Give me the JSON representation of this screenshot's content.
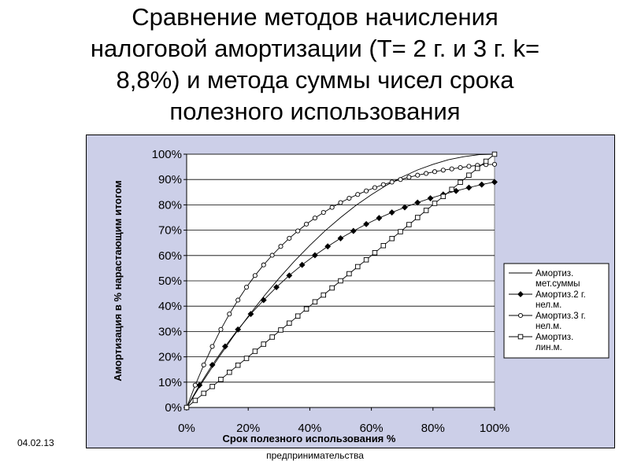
{
  "slide": {
    "title": "Сравнение методов начисления налоговой амортизации (T= 2 г. и 3 г. k= 8,8%) и метода суммы чисел срока полезного использования",
    "date": "04.02.13",
    "footer": "предпринимательства"
  },
  "chart_data": {
    "type": "line",
    "title": "",
    "xlabel": "Срок полезного использования %",
    "ylabel": "Амортизация в % нарастающим итогом",
    "xlim": [
      0,
      100
    ],
    "ylim": [
      0,
      100
    ],
    "xticks": [
      "0%",
      "20%",
      "40%",
      "60%",
      "80%",
      "100%"
    ],
    "yticks": [
      "0%",
      "10%",
      "20%",
      "30%",
      "40%",
      "50%",
      "60%",
      "70%",
      "80%",
      "90%",
      "100%"
    ],
    "grid": "horizontal",
    "legend_position": "right",
    "series": [
      {
        "name": "Амортиз. мет.суммы",
        "marker": "none",
        "x": [
          0,
          5,
          10,
          15,
          20,
          25,
          30,
          35,
          40,
          45,
          50,
          55,
          60,
          65,
          70,
          75,
          80,
          85,
          90,
          95,
          100
        ],
        "y": [
          0,
          9.8,
          19,
          27.8,
          36,
          43.8,
          51,
          57.8,
          64,
          69.8,
          75,
          79.8,
          84,
          87.8,
          91,
          93.8,
          96,
          97.8,
          99,
          99.8,
          100
        ]
      },
      {
        "name": "Амортиз.2 г. нел.м.",
        "marker": "filled-diamond",
        "x": [
          0,
          4.17,
          8.33,
          12.5,
          16.67,
          20.83,
          25,
          29.17,
          33.33,
          37.5,
          41.67,
          45.83,
          50,
          54.17,
          58.33,
          62.5,
          66.67,
          70.83,
          75,
          79.17,
          83.33,
          87.5,
          91.67,
          95.83,
          100
        ],
        "y": [
          0,
          8.8,
          16.8,
          24.1,
          30.8,
          36.9,
          42.4,
          47.5,
          52.1,
          56.3,
          60.1,
          63.6,
          66.8,
          69.7,
          72.4,
          74.8,
          77.0,
          79.0,
          80.9,
          82.6,
          84.1,
          85.5,
          86.8,
          88.0,
          89.0
        ]
      },
      {
        "name": "Амортиз.3 г. нел.м.",
        "marker": "open-circle",
        "x": [
          0,
          2.78,
          5.56,
          8.33,
          11.11,
          13.89,
          16.67,
          19.44,
          22.22,
          25,
          27.78,
          30.56,
          33.33,
          36.11,
          38.89,
          41.67,
          44.44,
          47.22,
          50,
          52.78,
          55.56,
          58.33,
          61.11,
          63.89,
          66.67,
          69.44,
          72.22,
          75,
          77.78,
          80.56,
          83.33,
          86.11,
          88.89,
          91.67,
          94.44,
          97.22,
          100
        ],
        "y": [
          0,
          8.8,
          16.8,
          24.1,
          30.8,
          36.9,
          42.4,
          47.5,
          52.1,
          56.3,
          60.1,
          63.6,
          66.8,
          69.7,
          72.4,
          74.8,
          77.0,
          79.0,
          80.9,
          82.6,
          84.1,
          85.5,
          86.8,
          88.0,
          89.0,
          90.0,
          90.9,
          91.7,
          92.4,
          93.1,
          93.7,
          94.2,
          94.7,
          95.2,
          95.6,
          95.9,
          96.0
        ]
      },
      {
        "name": "Амортиз. лин.м.",
        "marker": "open-square",
        "x": [
          0,
          2.78,
          5.56,
          8.33,
          11.11,
          13.89,
          16.67,
          19.44,
          22.22,
          25,
          27.78,
          30.56,
          33.33,
          36.11,
          38.89,
          41.67,
          44.44,
          47.22,
          50,
          52.78,
          55.56,
          58.33,
          61.11,
          63.89,
          66.67,
          69.44,
          72.22,
          75,
          77.78,
          80.56,
          83.33,
          86.11,
          88.89,
          91.67,
          94.44,
          97.22,
          100
        ],
        "y": [
          0,
          2.8,
          5.6,
          8.3,
          11.1,
          13.9,
          16.7,
          19.4,
          22.2,
          25,
          27.8,
          30.6,
          33.3,
          36.1,
          38.9,
          41.7,
          44.4,
          47.2,
          50,
          52.8,
          55.6,
          58.3,
          61.1,
          63.9,
          66.7,
          69.4,
          72.2,
          75,
          77.8,
          80.6,
          83.3,
          86.1,
          88.9,
          91.7,
          94.4,
          97.2,
          100
        ]
      }
    ],
    "legend": [
      {
        "line1": "Амортиз.",
        "line2": "мет.суммы"
      },
      {
        "line1": "Амортиз.2 г.",
        "line2": "нел.м."
      },
      {
        "line1": "Амортиз.3 г.",
        "line2": "нел.м."
      },
      {
        "line1": "Амортиз.",
        "line2": "лин.м."
      }
    ],
    "colors": {
      "background": "#cccfe8",
      "plot": "#ffffff",
      "line": "#000000"
    }
  }
}
